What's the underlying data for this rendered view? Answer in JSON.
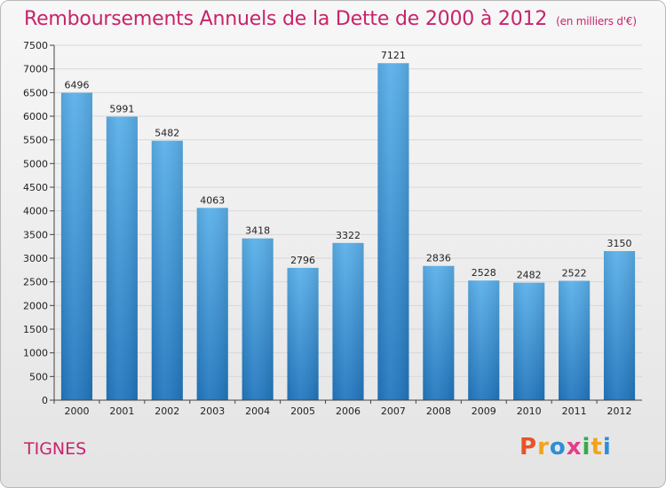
{
  "header": {
    "title": "Remboursements Annuels de la Dette de 2000 à 2012",
    "subtitle": "(en milliers d'€)"
  },
  "footer": {
    "city": "TIGNES",
    "brand": "Proxiti"
  },
  "chart_data": {
    "type": "bar",
    "title": "Remboursements Annuels de la Dette de 2000 à 2012",
    "subtitle": "(en milliers d'€)",
    "categories": [
      "2000",
      "2001",
      "2002",
      "2003",
      "2004",
      "2005",
      "2006",
      "2007",
      "2008",
      "2009",
      "2010",
      "2011",
      "2012"
    ],
    "values": [
      6496,
      5991,
      5482,
      4063,
      3418,
      2796,
      3322,
      7121,
      2836,
      2528,
      2482,
      2522,
      3150
    ],
    "xlabel": "",
    "ylabel": "",
    "ylim": [
      0,
      7500
    ],
    "yticks": [
      0,
      500,
      1000,
      1500,
      2000,
      2500,
      3000,
      3500,
      4000,
      4500,
      5000,
      5500,
      6000,
      6500,
      7000,
      7500
    ],
    "grid": true,
    "bar_color_top": "#5ab0ea",
    "bar_color_bottom": "#2277bf",
    "grid_color": "#d8d8d8"
  }
}
